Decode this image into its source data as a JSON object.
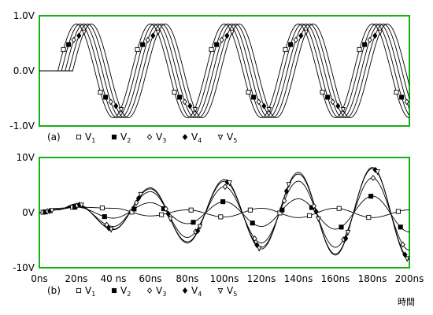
{
  "chart_data": [
    {
      "type": "line",
      "panel_label": "(a)",
      "x_range_ns": [
        0,
        200
      ],
      "ylim": [
        -1.0,
        1.0
      ],
      "y_ticks": [
        "1.0V",
        "0.0V",
        "-1.0V"
      ],
      "y_tick_values": [
        1.0,
        0.0,
        -1.0
      ],
      "x_ticks": [],
      "grid": false,
      "frame_color": "#16b016",
      "series": [
        {
          "label": "V",
          "sub": "1",
          "marker": "square-open",
          "amplitude": 0.85,
          "period_ns": 40,
          "start_ns": 10
        },
        {
          "label": "V",
          "sub": "2",
          "marker": "square-filled",
          "amplitude": 0.85,
          "period_ns": 40,
          "start_ns": 12
        },
        {
          "label": "V",
          "sub": "3",
          "marker": "diamond-open",
          "amplitude": 0.85,
          "period_ns": 40,
          "start_ns": 14
        },
        {
          "label": "V",
          "sub": "4",
          "marker": "diamond-filled",
          "amplitude": 0.85,
          "period_ns": 40,
          "start_ns": 16
        },
        {
          "label": "V",
          "sub": "5",
          "marker": "triangle-down-open",
          "amplitude": 0.85,
          "period_ns": 40,
          "start_ns": 18
        }
      ]
    },
    {
      "type": "line",
      "panel_label": "(b)",
      "x_range_ns": [
        0,
        200
      ],
      "ylim": [
        -10,
        10
      ],
      "y_ticks": [
        "10V",
        "0V",
        "-10V"
      ],
      "y_tick_values": [
        10,
        0,
        -10
      ],
      "x_ticks": [
        "0ns",
        "20ns",
        "40 ns",
        "60ns",
        "80ns",
        "100ns",
        "120ns",
        "140ns",
        "160ns",
        "180ns",
        "200ns"
      ],
      "x_tick_values": [
        0,
        20,
        40,
        60,
        80,
        100,
        120,
        140,
        160,
        180,
        200
      ],
      "xlabel": "時間",
      "grid": false,
      "frame_color": "#16b016",
      "series": [
        {
          "label": "V",
          "sub": "1",
          "marker": "square-open",
          "peak_ns": [
            10,
            20,
            40,
            60,
            80,
            100,
            120,
            140,
            160,
            180,
            200
          ],
          "peak_v": [
            0.8,
            1.0,
            0.8,
            -0.6,
            0.5,
            -0.8,
            0.8,
            -0.9,
            0.8,
            -0.9,
            0.5
          ]
        },
        {
          "label": "V",
          "sub": "2",
          "marker": "square-filled",
          "peak_ns": [
            10,
            20,
            40,
            60,
            80,
            100,
            120,
            140,
            160,
            180,
            200
          ],
          "peak_v": [
            0.6,
            1.0,
            -1.0,
            1.8,
            -2.0,
            2.0,
            -2.5,
            2.5,
            -3.0,
            3.0,
            -3.5
          ]
        },
        {
          "label": "V",
          "sub": "3",
          "marker": "diamond-open",
          "peak_ns": [
            10,
            20,
            40,
            60,
            80,
            100,
            120,
            140,
            160,
            180,
            200
          ],
          "peak_v": [
            0.6,
            1.3,
            -2.5,
            3.8,
            -4.5,
            4.7,
            -5.5,
            5.7,
            -6.3,
            6.3,
            -6.8
          ]
        },
        {
          "label": "V",
          "sub": "4",
          "marker": "diamond-filled",
          "peak_ns": [
            10,
            20,
            40,
            60,
            80,
            100,
            120,
            140,
            160,
            180,
            200
          ],
          "peak_v": [
            0.5,
            1.5,
            -3.0,
            4.3,
            -5.3,
            5.7,
            -6.3,
            7.0,
            -7.5,
            8.0,
            -8.2
          ]
        },
        {
          "label": "V",
          "sub": "5",
          "marker": "triangle-down-open",
          "peak_ns": [
            10,
            20,
            40,
            60,
            80,
            100,
            120,
            140,
            160,
            180,
            200
          ],
          "peak_v": [
            0.5,
            1.6,
            -3.1,
            4.5,
            -5.5,
            6.0,
            -6.6,
            7.3,
            -7.7,
            8.2,
            -8.5
          ]
        }
      ]
    }
  ]
}
